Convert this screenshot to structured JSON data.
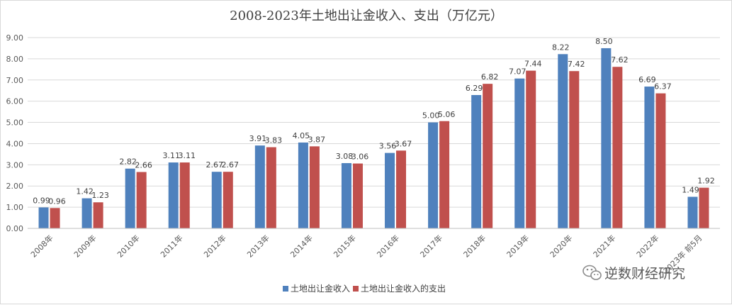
{
  "chart_data": {
    "type": "bar",
    "title": "2008-2023年土地出让金收入、支出（万亿元）",
    "categories": [
      "2008年",
      "2009年",
      "2010年",
      "2011年",
      "2012年",
      "2013年",
      "2014年",
      "2015年",
      "2016年",
      "2017年",
      "2018年",
      "2019年",
      "2020年",
      "2021年",
      "2022年",
      "2023年 前5月"
    ],
    "series": [
      {
        "name": "土地出让金收入",
        "color": "#4f81bd",
        "values": [
          0.99,
          1.42,
          2.82,
          3.11,
          2.67,
          3.91,
          4.05,
          3.08,
          3.56,
          5.0,
          6.29,
          7.07,
          8.22,
          8.5,
          6.69,
          1.49
        ],
        "labels": [
          "0.99",
          "1.42",
          "2.82",
          "3.11",
          "2.67",
          "3.91",
          "4.05",
          "3.08",
          "3.56",
          "5.00",
          "6.29",
          "7.07",
          "8.22",
          "8.50",
          "6.69",
          "1.49"
        ]
      },
      {
        "name": "土地出让金收入的支出",
        "color": "#c0504d",
        "values": [
          0.96,
          1.23,
          2.66,
          3.11,
          2.67,
          3.83,
          3.87,
          3.06,
          3.67,
          5.06,
          6.82,
          7.44,
          7.42,
          7.62,
          6.37,
          1.92
        ],
        "labels": [
          "0.96",
          "1.23",
          "2.66",
          "3.11",
          "2.67",
          "3.83",
          "3.87",
          "3.06",
          "3.67",
          "5.06",
          "6.82",
          "7.44",
          "7.42",
          "7.62",
          "6.37",
          "1.92"
        ]
      }
    ],
    "ylim": [
      0,
      9
    ],
    "yticks": [
      "0.00",
      "1.00",
      "2.00",
      "3.00",
      "4.00",
      "5.00",
      "6.00",
      "7.00",
      "8.00",
      "9.00"
    ],
    "xlabel": "",
    "ylabel": "",
    "grid": true,
    "legend": "bottom"
  },
  "watermark": {
    "text": "逆数财经研究",
    "icon": "wechat-icon"
  }
}
